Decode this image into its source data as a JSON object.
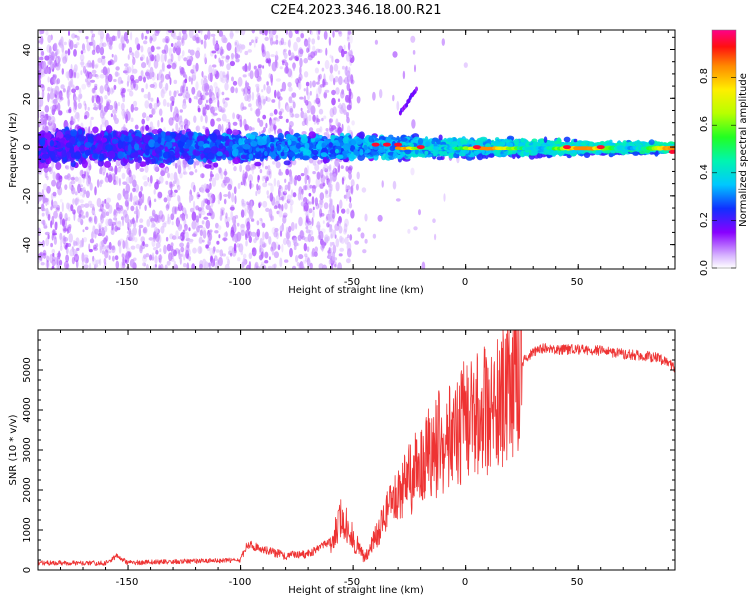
{
  "title": "C2E4.2023.346.18.00.R21",
  "chart_data": [
    {
      "type": "heatmap",
      "xlabel": "Height of straight line (km)",
      "ylabel": "Frequency (Hz)",
      "xlim": [
        -190,
        93
      ],
      "ylim": [
        -50,
        48
      ],
      "xticks": [
        -150,
        -100,
        -50,
        0,
        50
      ],
      "xtick_labels": [
        "-150",
        "-100",
        "-50",
        "0",
        "50"
      ],
      "yticks": [
        -40,
        -20,
        0,
        20,
        40
      ],
      "ytick_labels": [
        "-40",
        "-20",
        "0",
        "20",
        "40"
      ],
      "colorbar": {
        "label": "Normalized spectral amplitude",
        "range": [
          0,
          1
        ],
        "ticks": [
          0.0,
          0.2,
          0.4,
          0.6,
          0.8
        ],
        "tick_labels": [
          "0.0",
          "0.2",
          "0.4",
          "0.6",
          "0.8"
        ],
        "colormap": "rainbow"
      },
      "features": [
        {
          "name": "scattered noise",
          "x_range": [
            -190,
            -55
          ],
          "freq_range": [
            -50,
            48
          ],
          "amplitude": 0.05
        },
        {
          "name": "central band",
          "x_range": [
            -190,
            93
          ],
          "freq_center": 0,
          "amplitude_start": 0.15,
          "amplitude_end": 0.75
        },
        {
          "name": "peak spots",
          "x": [
            -40,
            -35,
            -30,
            -20,
            5,
            45,
            60,
            92
          ],
          "freq": [
            1,
            1,
            1,
            0,
            0,
            0,
            0,
            -2
          ],
          "amplitude": 0.95
        }
      ]
    },
    {
      "type": "line",
      "xlabel": "Height of straight line (km)",
      "ylabel": "SNR (10 * v/v)",
      "xlim": [
        -190,
        93
      ],
      "ylim": [
        0,
        6000
      ],
      "xticks": [
        -150,
        -100,
        -50,
        0,
        50
      ],
      "xtick_labels": [
        "-150",
        "-100",
        "-50",
        "0",
        "50"
      ],
      "yticks": [
        0,
        1000,
        2000,
        3000,
        4000,
        5000
      ],
      "ytick_labels": [
        "0",
        "1000",
        "2000",
        "3000",
        "4000",
        "5000"
      ],
      "series": [
        {
          "name": "SNR",
          "color": "#ee3333",
          "x": [
            -190,
            -160,
            -155,
            -150,
            -100,
            -97,
            -80,
            -70,
            -60,
            -55,
            -50,
            -45,
            -40,
            -35,
            -30,
            -25,
            -20,
            -15,
            -10,
            -5,
            0,
            5,
            10,
            15,
            20,
            25,
            30,
            35,
            40,
            50,
            60,
            70,
            80,
            85,
            90,
            93
          ],
          "y": [
            180,
            170,
            350,
            180,
            250,
            650,
            350,
            400,
            700,
            1300,
            800,
            300,
            800,
            1400,
            1800,
            2300,
            2600,
            3000,
            3300,
            3500,
            3700,
            3800,
            4000,
            4300,
            4800,
            5200,
            5450,
            5550,
            5500,
            5520,
            5480,
            5400,
            5350,
            5300,
            5200,
            5050
          ]
        }
      ]
    }
  ],
  "colors": {
    "series": "#ee3333",
    "axis": "#000000"
  }
}
